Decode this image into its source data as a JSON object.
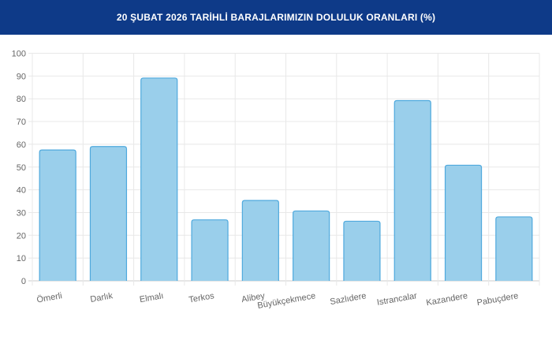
{
  "chart_data": {
    "type": "bar",
    "title": "20 ŞUBAT 2026 TARİHLİ BARAJLARIMIZIN DOLULUK ORANLARI (%)",
    "categories": [
      "Ömerli",
      "Darlık",
      "Elmalı",
      "Terkos",
      "Alibey",
      "Büyükçekmece",
      "Sazlıdere",
      "Istrancalar",
      "Kazandere",
      "Pabuçdere"
    ],
    "values": [
      57.5,
      59.0,
      89.1,
      26.8,
      35.3,
      30.7,
      26.2,
      79.2,
      50.8,
      28.1
    ],
    "xlabel": "",
    "ylabel": "",
    "ylim": [
      0,
      100
    ],
    "yticks": [
      "0",
      "10",
      "20",
      "30",
      "40",
      "50",
      "60",
      "70",
      "80",
      "90",
      "100"
    ],
    "grid": true,
    "colors": {
      "bar_fill": "#9acfeb",
      "bar_border": "#4fa9dd",
      "header": "#0e3a88"
    }
  }
}
